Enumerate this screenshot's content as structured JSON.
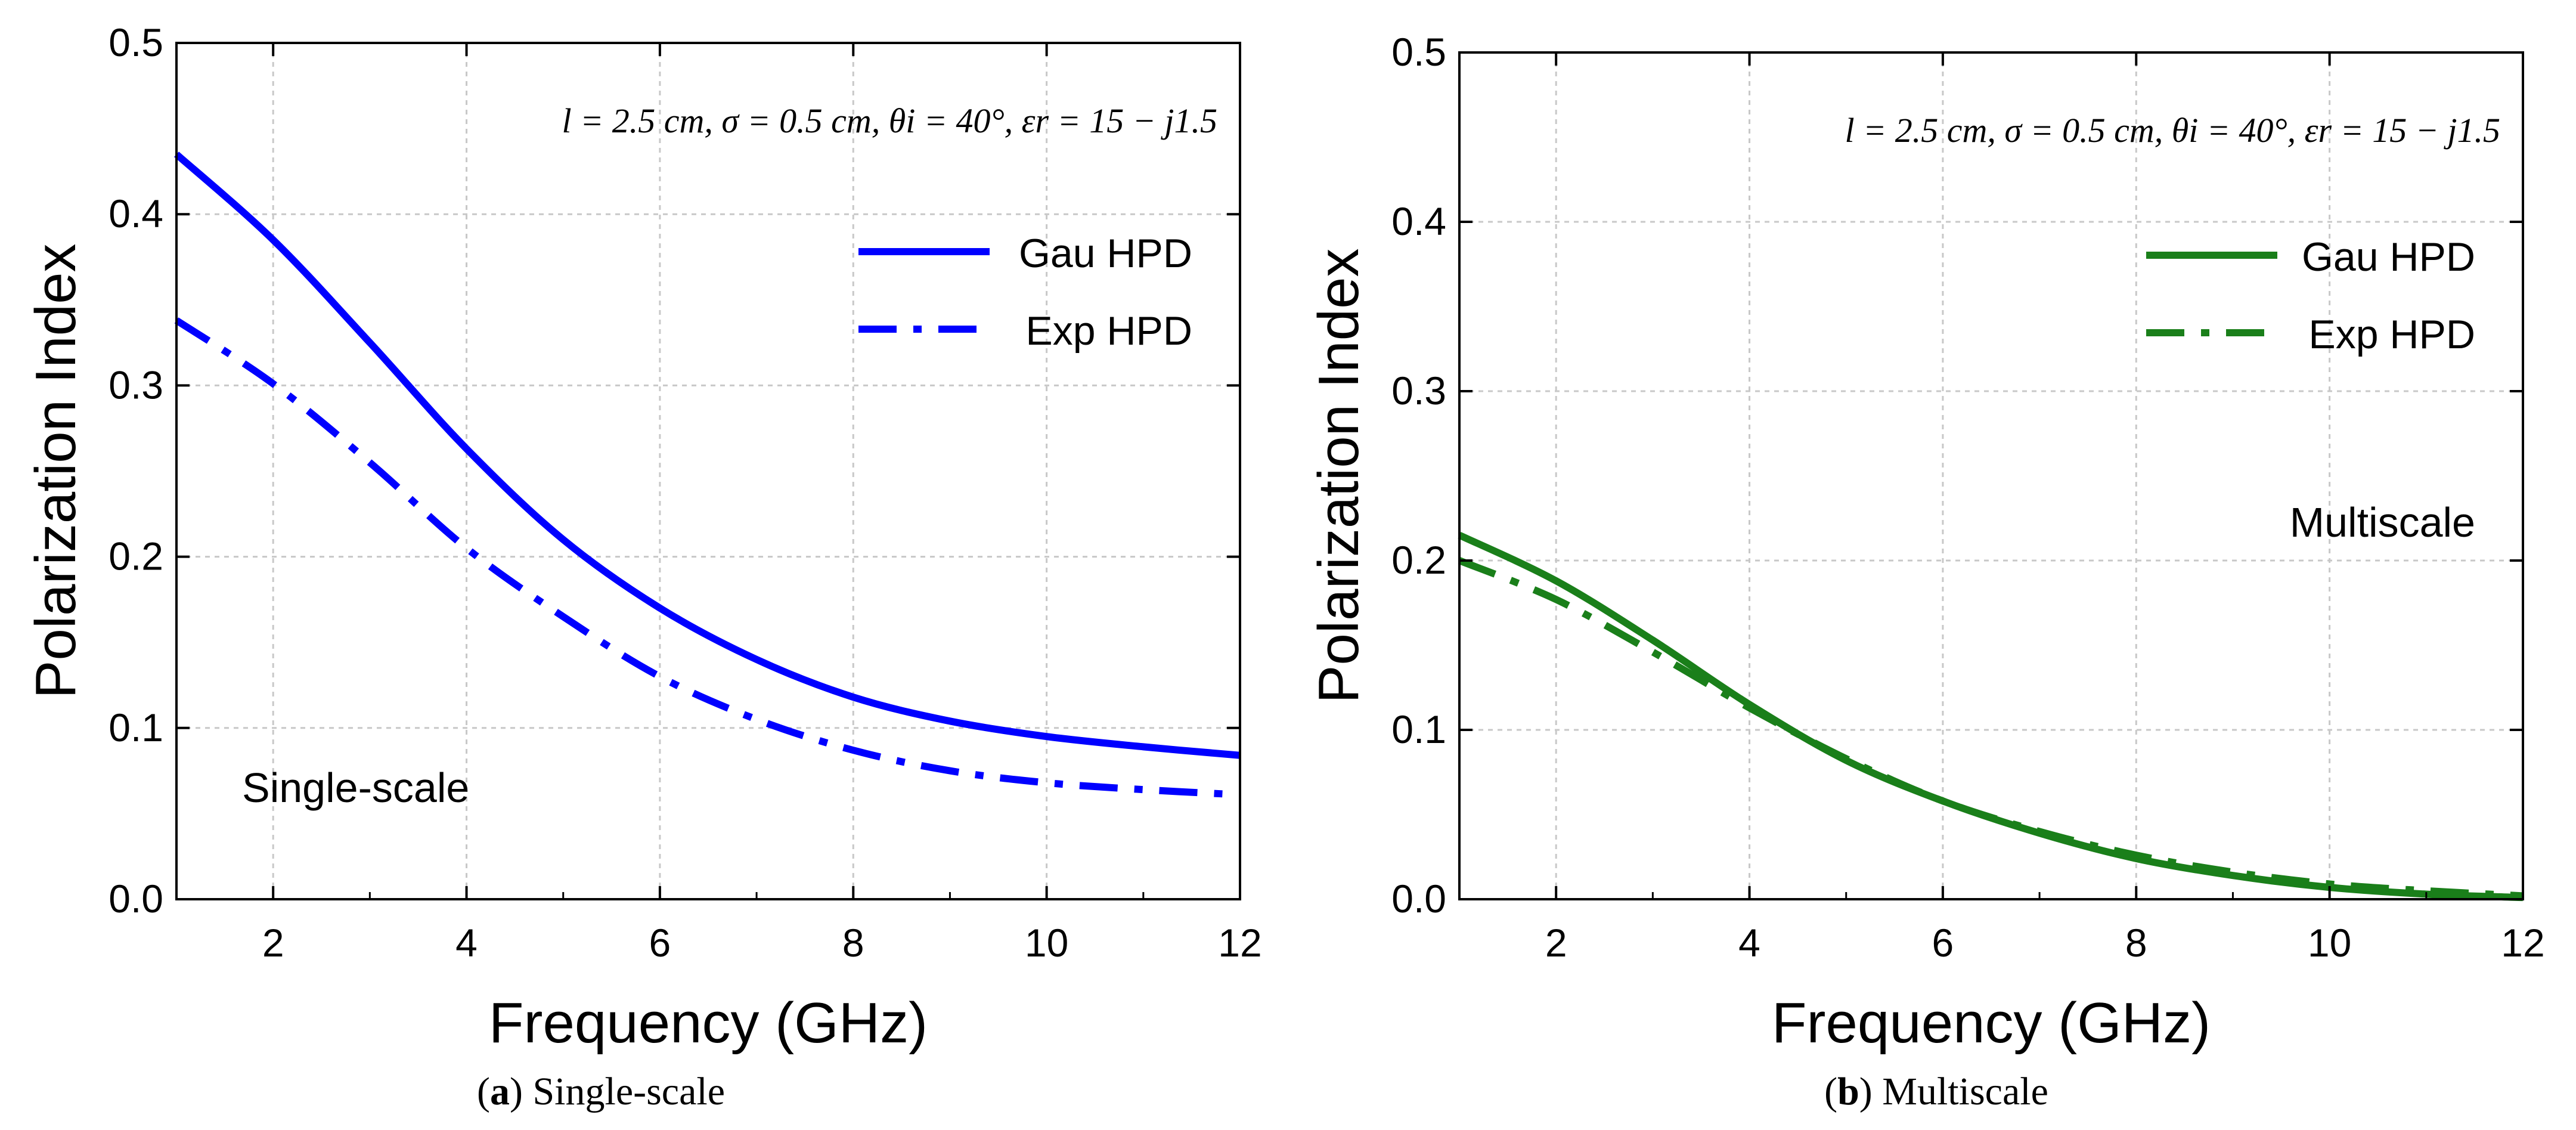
{
  "chart_data": [
    {
      "type": "line",
      "panel_label": "a",
      "caption": "Single-scale",
      "title": "",
      "xlabel": "Frequency (GHz)",
      "ylabel": "Polarization Index",
      "xlim": [
        1,
        12
      ],
      "ylim": [
        0.0,
        0.5
      ],
      "xticks": [
        2,
        4,
        6,
        8,
        10,
        12
      ],
      "yticks": [
        0.0,
        0.1,
        0.2,
        0.3,
        0.4,
        0.5
      ],
      "ytick_labels": [
        "0.0",
        "0.1",
        "0.2",
        "0.3",
        "0.4",
        "0.5"
      ],
      "grid": true,
      "legend_position": "top-right",
      "params_text": "l = 2.5 cm, σ = 0.5 cm, θi = 40°, εr = 15 − j1.5",
      "annotation": "Single-scale",
      "color": "#0000ff",
      "x": [
        1,
        2,
        3,
        4,
        5,
        6,
        7,
        8,
        9,
        10,
        11,
        12
      ],
      "series": [
        {
          "name": "Gau HPD",
          "style": "solid",
          "values": [
            0.435,
            0.385,
            0.325,
            0.263,
            0.21,
            0.17,
            0.14,
            0.118,
            0.104,
            0.095,
            0.089,
            0.084
          ]
        },
        {
          "name": "Exp HPD",
          "style": "dashdot",
          "values": [
            0.338,
            0.301,
            0.255,
            0.205,
            0.165,
            0.13,
            0.105,
            0.087,
            0.075,
            0.068,
            0.064,
            0.061
          ]
        }
      ]
    },
    {
      "type": "line",
      "panel_label": "b",
      "caption": "Multiscale",
      "title": "",
      "xlabel": "Frequency (GHz)",
      "ylabel": "Polarization Index",
      "xlim": [
        1,
        12
      ],
      "ylim": [
        0.0,
        0.5
      ],
      "xticks": [
        2,
        4,
        6,
        8,
        10,
        12
      ],
      "yticks": [
        0.0,
        0.1,
        0.2,
        0.3,
        0.4,
        0.5
      ],
      "ytick_labels": [
        "0.0",
        "0.1",
        "0.2",
        "0.3",
        "0.4",
        "0.5"
      ],
      "grid": true,
      "legend_position": "top-right",
      "params_text": "l = 2.5 cm, σ = 0.5 cm, θi = 40°, εr = 15 − j1.5",
      "annotation": "Multiscale",
      "color": "#1a7f1a",
      "x": [
        1,
        2,
        3,
        4,
        5,
        6,
        7,
        8,
        9,
        10,
        11,
        12
      ],
      "series": [
        {
          "name": "Gau HPD",
          "style": "solid",
          "values": [
            0.215,
            0.188,
            0.153,
            0.115,
            0.082,
            0.058,
            0.039,
            0.024,
            0.014,
            0.007,
            0.003,
            0.001
          ]
        },
        {
          "name": "Exp HPD",
          "style": "dashdot",
          "values": [
            0.2,
            0.177,
            0.146,
            0.113,
            0.083,
            0.058,
            0.04,
            0.026,
            0.016,
            0.009,
            0.005,
            0.002
          ]
        }
      ]
    }
  ]
}
